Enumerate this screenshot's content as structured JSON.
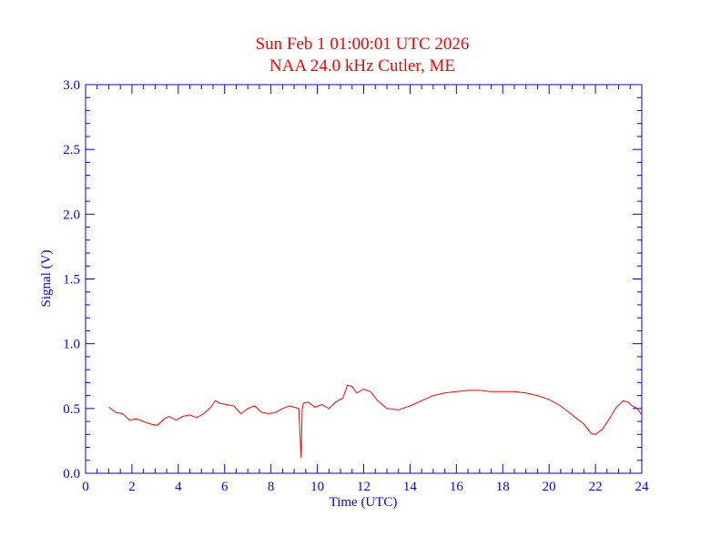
{
  "chart_data": {
    "type": "line",
    "title": "Sun Feb 1 01:00:01 UTC 2026",
    "subtitle": "NAA 24.0 kHz Cutler, ME",
    "xlabel": "Time (UTC)",
    "ylabel": "Signal (V)",
    "xlim": [
      0,
      24
    ],
    "ylim": [
      0.0,
      3.0
    ],
    "x_ticks": [
      "0",
      "2",
      "4",
      "6",
      "8",
      "10",
      "12",
      "14",
      "16",
      "18",
      "20",
      "22",
      "24"
    ],
    "y_ticks": [
      "0.0",
      "0.5",
      "1.0",
      "1.5",
      "2.0",
      "2.5",
      "3.0"
    ],
    "grid": false,
    "colors": {
      "axes": "#0000ff",
      "title": "#ff0000",
      "series": "#ff0000"
    },
    "series": [
      {
        "x": [
          1.0,
          1.3,
          1.6,
          1.9,
          2.2,
          2.5,
          2.8,
          3.1,
          3.4,
          3.6,
          3.9,
          4.2,
          4.5,
          4.8,
          5.1,
          5.4,
          5.6,
          5.8,
          6.1,
          6.4,
          6.7,
          7.0,
          7.3,
          7.6,
          7.9,
          8.2,
          8.5,
          8.8,
          9.0,
          9.2,
          9.3,
          9.35,
          9.4,
          9.6,
          9.9,
          10.2,
          10.5,
          10.8,
          11.1,
          11.3,
          11.5,
          11.7,
          12.0,
          12.3,
          12.6,
          13.0,
          13.5,
          14.0,
          14.5,
          15.0,
          15.5,
          16.0,
          16.5,
          17.0,
          17.5,
          18.0,
          18.5,
          19.0,
          19.5,
          20.0,
          20.5,
          21.0,
          21.5,
          21.8,
          22.0,
          22.3,
          22.6,
          22.9,
          23.2,
          23.4,
          23.6,
          23.8,
          24.0
        ],
        "values": [
          0.51,
          0.47,
          0.46,
          0.41,
          0.42,
          0.4,
          0.38,
          0.37,
          0.42,
          0.44,
          0.41,
          0.44,
          0.45,
          0.43,
          0.46,
          0.51,
          0.56,
          0.54,
          0.53,
          0.52,
          0.46,
          0.5,
          0.52,
          0.47,
          0.46,
          0.47,
          0.5,
          0.52,
          0.51,
          0.5,
          0.12,
          0.5,
          0.54,
          0.55,
          0.51,
          0.53,
          0.5,
          0.55,
          0.58,
          0.68,
          0.67,
          0.62,
          0.65,
          0.63,
          0.56,
          0.5,
          0.49,
          0.52,
          0.56,
          0.6,
          0.62,
          0.63,
          0.64,
          0.64,
          0.63,
          0.63,
          0.63,
          0.62,
          0.6,
          0.57,
          0.52,
          0.45,
          0.38,
          0.31,
          0.3,
          0.34,
          0.42,
          0.51,
          0.56,
          0.55,
          0.52,
          0.5,
          0.45
        ]
      }
    ]
  }
}
